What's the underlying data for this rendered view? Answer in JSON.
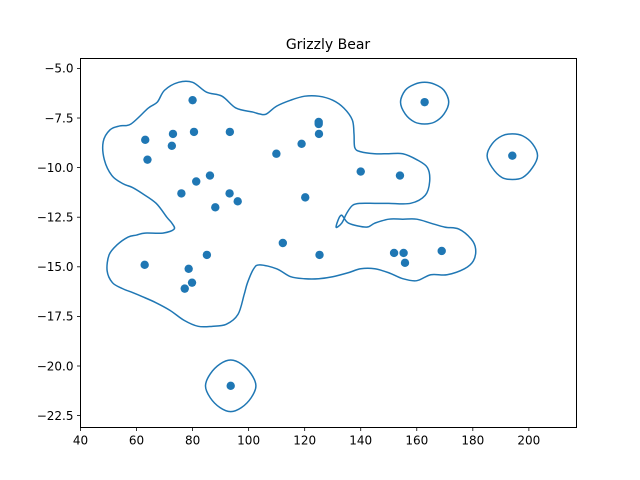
{
  "chart_data": {
    "type": "scatter",
    "title": "Grizzly Bear",
    "xlabel": "",
    "ylabel": "",
    "xlim": [
      40,
      217
    ],
    "ylim": [
      -23.1,
      -4.5
    ],
    "xticks": [
      40,
      60,
      80,
      100,
      120,
      140,
      160,
      180,
      200
    ],
    "yticks": [
      -5.0,
      -7.5,
      -10.0,
      -12.5,
      -15.0,
      -17.5,
      -20.0,
      -22.5
    ],
    "xtick_labels": [
      "40",
      "60",
      "80",
      "100",
      "120",
      "140",
      "160",
      "180",
      "200"
    ],
    "ytick_labels": [
      "−5.0",
      "−7.5",
      "−10.0",
      "−12.5",
      "−15.0",
      "−17.5",
      "−20.0",
      "−22.5"
    ],
    "grid": false,
    "color": "#1f77b4",
    "points": [
      [
        80.0,
        -6.6
      ],
      [
        162.8,
        -6.7
      ],
      [
        125.0,
        -7.7
      ],
      [
        125.0,
        -7.8
      ],
      [
        73.0,
        -8.3
      ],
      [
        80.5,
        -8.2
      ],
      [
        93.3,
        -8.2
      ],
      [
        125.1,
        -8.3
      ],
      [
        63.1,
        -8.6
      ],
      [
        118.9,
        -8.8
      ],
      [
        72.6,
        -8.9
      ],
      [
        109.9,
        -9.3
      ],
      [
        63.9,
        -9.6
      ],
      [
        194.1,
        -9.4
      ],
      [
        140.0,
        -10.2
      ],
      [
        86.2,
        -10.4
      ],
      [
        154.0,
        -10.4
      ],
      [
        81.3,
        -10.7
      ],
      [
        76.0,
        -11.3
      ],
      [
        93.2,
        -11.3
      ],
      [
        120.2,
        -11.5
      ],
      [
        96.1,
        -11.7
      ],
      [
        88.1,
        -12.0
      ],
      [
        112.2,
        -13.8
      ],
      [
        151.9,
        -14.3
      ],
      [
        155.3,
        -14.3
      ],
      [
        168.9,
        -14.2
      ],
      [
        85.1,
        -14.4
      ],
      [
        125.3,
        -14.4
      ],
      [
        62.9,
        -14.9
      ],
      [
        155.8,
        -14.8
      ],
      [
        78.6,
        -15.1
      ],
      [
        79.8,
        -15.8
      ],
      [
        77.2,
        -16.1
      ],
      [
        93.6,
        -21.0
      ]
    ],
    "contours": [
      [
        [
          58.0,
          -7.8
        ],
        [
          64.2,
          -7.0
        ],
        [
          67.4,
          -6.7
        ],
        [
          70.0,
          -6.1
        ],
        [
          75.0,
          -5.7
        ],
        [
          80.0,
          -5.7
        ],
        [
          85.0,
          -6.2
        ],
        [
          90.5,
          -6.4
        ],
        [
          95.5,
          -7.0
        ],
        [
          101.5,
          -7.2
        ],
        [
          104.0,
          -7.3
        ],
        [
          106.3,
          -7.3
        ],
        [
          110.0,
          -6.9
        ],
        [
          115.0,
          -6.6
        ],
        [
          120.0,
          -6.4
        ],
        [
          125.0,
          -6.4
        ],
        [
          130.0,
          -6.6
        ],
        [
          134.0,
          -7.0
        ],
        [
          137.0,
          -7.6
        ],
        [
          137.6,
          -8.3
        ],
        [
          137.9,
          -9.0
        ],
        [
          140.0,
          -9.2
        ],
        [
          145.0,
          -9.3
        ],
        [
          150.0,
          -9.3
        ],
        [
          155.0,
          -9.3
        ],
        [
          160.0,
          -9.6
        ],
        [
          163.8,
          -10.0
        ],
        [
          164.6,
          -10.7
        ],
        [
          163.0,
          -11.4
        ],
        [
          157.8,
          -11.8
        ],
        [
          150.0,
          -11.8
        ],
        [
          145.0,
          -11.8
        ],
        [
          140.0,
          -11.8
        ],
        [
          137.1,
          -11.9
        ],
        [
          135.0,
          -12.3
        ],
        [
          133.2,
          -12.8
        ],
        [
          131.2,
          -13.0
        ],
        [
          133.0,
          -12.4
        ],
        [
          135.7,
          -12.8
        ],
        [
          142.0,
          -13.0
        ],
        [
          145.0,
          -12.8
        ],
        [
          150.0,
          -12.6
        ],
        [
          155.0,
          -12.6
        ],
        [
          160.0,
          -12.6
        ],
        [
          165.0,
          -12.8
        ],
        [
          170.0,
          -13.0
        ],
        [
          175.0,
          -13.1
        ],
        [
          179.4,
          -13.6
        ],
        [
          181.0,
          -14.1
        ],
        [
          180.2,
          -14.7
        ],
        [
          177.0,
          -15.1
        ],
        [
          170.8,
          -15.4
        ],
        [
          165.0,
          -15.4
        ],
        [
          160.0,
          -15.7
        ],
        [
          155.0,
          -15.6
        ],
        [
          150.0,
          -15.3
        ],
        [
          145.0,
          -15.1
        ],
        [
          140.0,
          -15.1
        ],
        [
          135.5,
          -15.3
        ],
        [
          130.0,
          -15.5
        ],
        [
          125.0,
          -15.6
        ],
        [
          120.0,
          -15.6
        ],
        [
          115.0,
          -15.5
        ],
        [
          110.0,
          -15.1
        ],
        [
          104.0,
          -14.9
        ],
        [
          101.8,
          -15.1
        ],
        [
          99.6,
          -15.8
        ],
        [
          98.4,
          -16.4
        ],
        [
          96.2,
          -17.4
        ],
        [
          92.0,
          -17.9
        ],
        [
          87.0,
          -18.0
        ],
        [
          82.0,
          -18.0
        ],
        [
          77.0,
          -17.7
        ],
        [
          72.0,
          -17.2
        ],
        [
          66.8,
          -16.8
        ],
        [
          62.0,
          -16.5
        ],
        [
          58.6,
          -16.3
        ],
        [
          55.0,
          -16.1
        ],
        [
          51.4,
          -15.8
        ],
        [
          49.5,
          -15.2
        ],
        [
          50.2,
          -14.4
        ],
        [
          53.0,
          -13.9
        ],
        [
          57.0,
          -13.5
        ],
        [
          60.0,
          -13.4
        ],
        [
          63.0,
          -13.3
        ],
        [
          69.4,
          -13.3
        ],
        [
          73.4,
          -13.1
        ],
        [
          72.6,
          -12.8
        ],
        [
          70.8,
          -12.5
        ],
        [
          67.0,
          -11.8
        ],
        [
          62.0,
          -11.3
        ],
        [
          58.5,
          -11.0
        ],
        [
          55.0,
          -10.8
        ],
        [
          51.2,
          -10.4
        ],
        [
          48.5,
          -9.6
        ],
        [
          48.1,
          -8.7
        ],
        [
          50.5,
          -8.1
        ],
        [
          54.0,
          -7.9
        ],
        [
          58.0,
          -7.8
        ]
      ],
      [
        [
          162.8,
          -5.7
        ],
        [
          166.4,
          -5.8
        ],
        [
          169.7,
          -6.1
        ],
        [
          171.4,
          -6.7
        ],
        [
          169.7,
          -7.3
        ],
        [
          166.4,
          -7.7
        ],
        [
          162.8,
          -7.8
        ],
        [
          159.2,
          -7.7
        ],
        [
          155.9,
          -7.3
        ],
        [
          154.2,
          -6.7
        ],
        [
          155.9,
          -6.1
        ],
        [
          159.2,
          -5.8
        ],
        [
          162.8,
          -5.7
        ]
      ],
      [
        [
          194.1,
          -8.3
        ],
        [
          197.8,
          -8.4
        ],
        [
          201.3,
          -8.8
        ],
        [
          203.1,
          -9.4
        ],
        [
          201.3,
          -10.0
        ],
        [
          197.8,
          -10.5
        ],
        [
          194.1,
          -10.6
        ],
        [
          190.4,
          -10.5
        ],
        [
          186.9,
          -10.0
        ],
        [
          185.1,
          -9.4
        ],
        [
          186.9,
          -8.8
        ],
        [
          190.4,
          -8.4
        ],
        [
          194.1,
          -8.3
        ]
      ],
      [
        [
          93.6,
          -19.7
        ],
        [
          97.4,
          -19.9
        ],
        [
          100.9,
          -20.4
        ],
        [
          102.6,
          -21.0
        ],
        [
          100.9,
          -21.6
        ],
        [
          97.4,
          -22.1
        ],
        [
          93.6,
          -22.3
        ],
        [
          89.8,
          -22.1
        ],
        [
          86.3,
          -21.6
        ],
        [
          84.6,
          -21.0
        ],
        [
          86.3,
          -20.4
        ],
        [
          89.8,
          -19.9
        ],
        [
          93.6,
          -19.7
        ]
      ]
    ]
  }
}
